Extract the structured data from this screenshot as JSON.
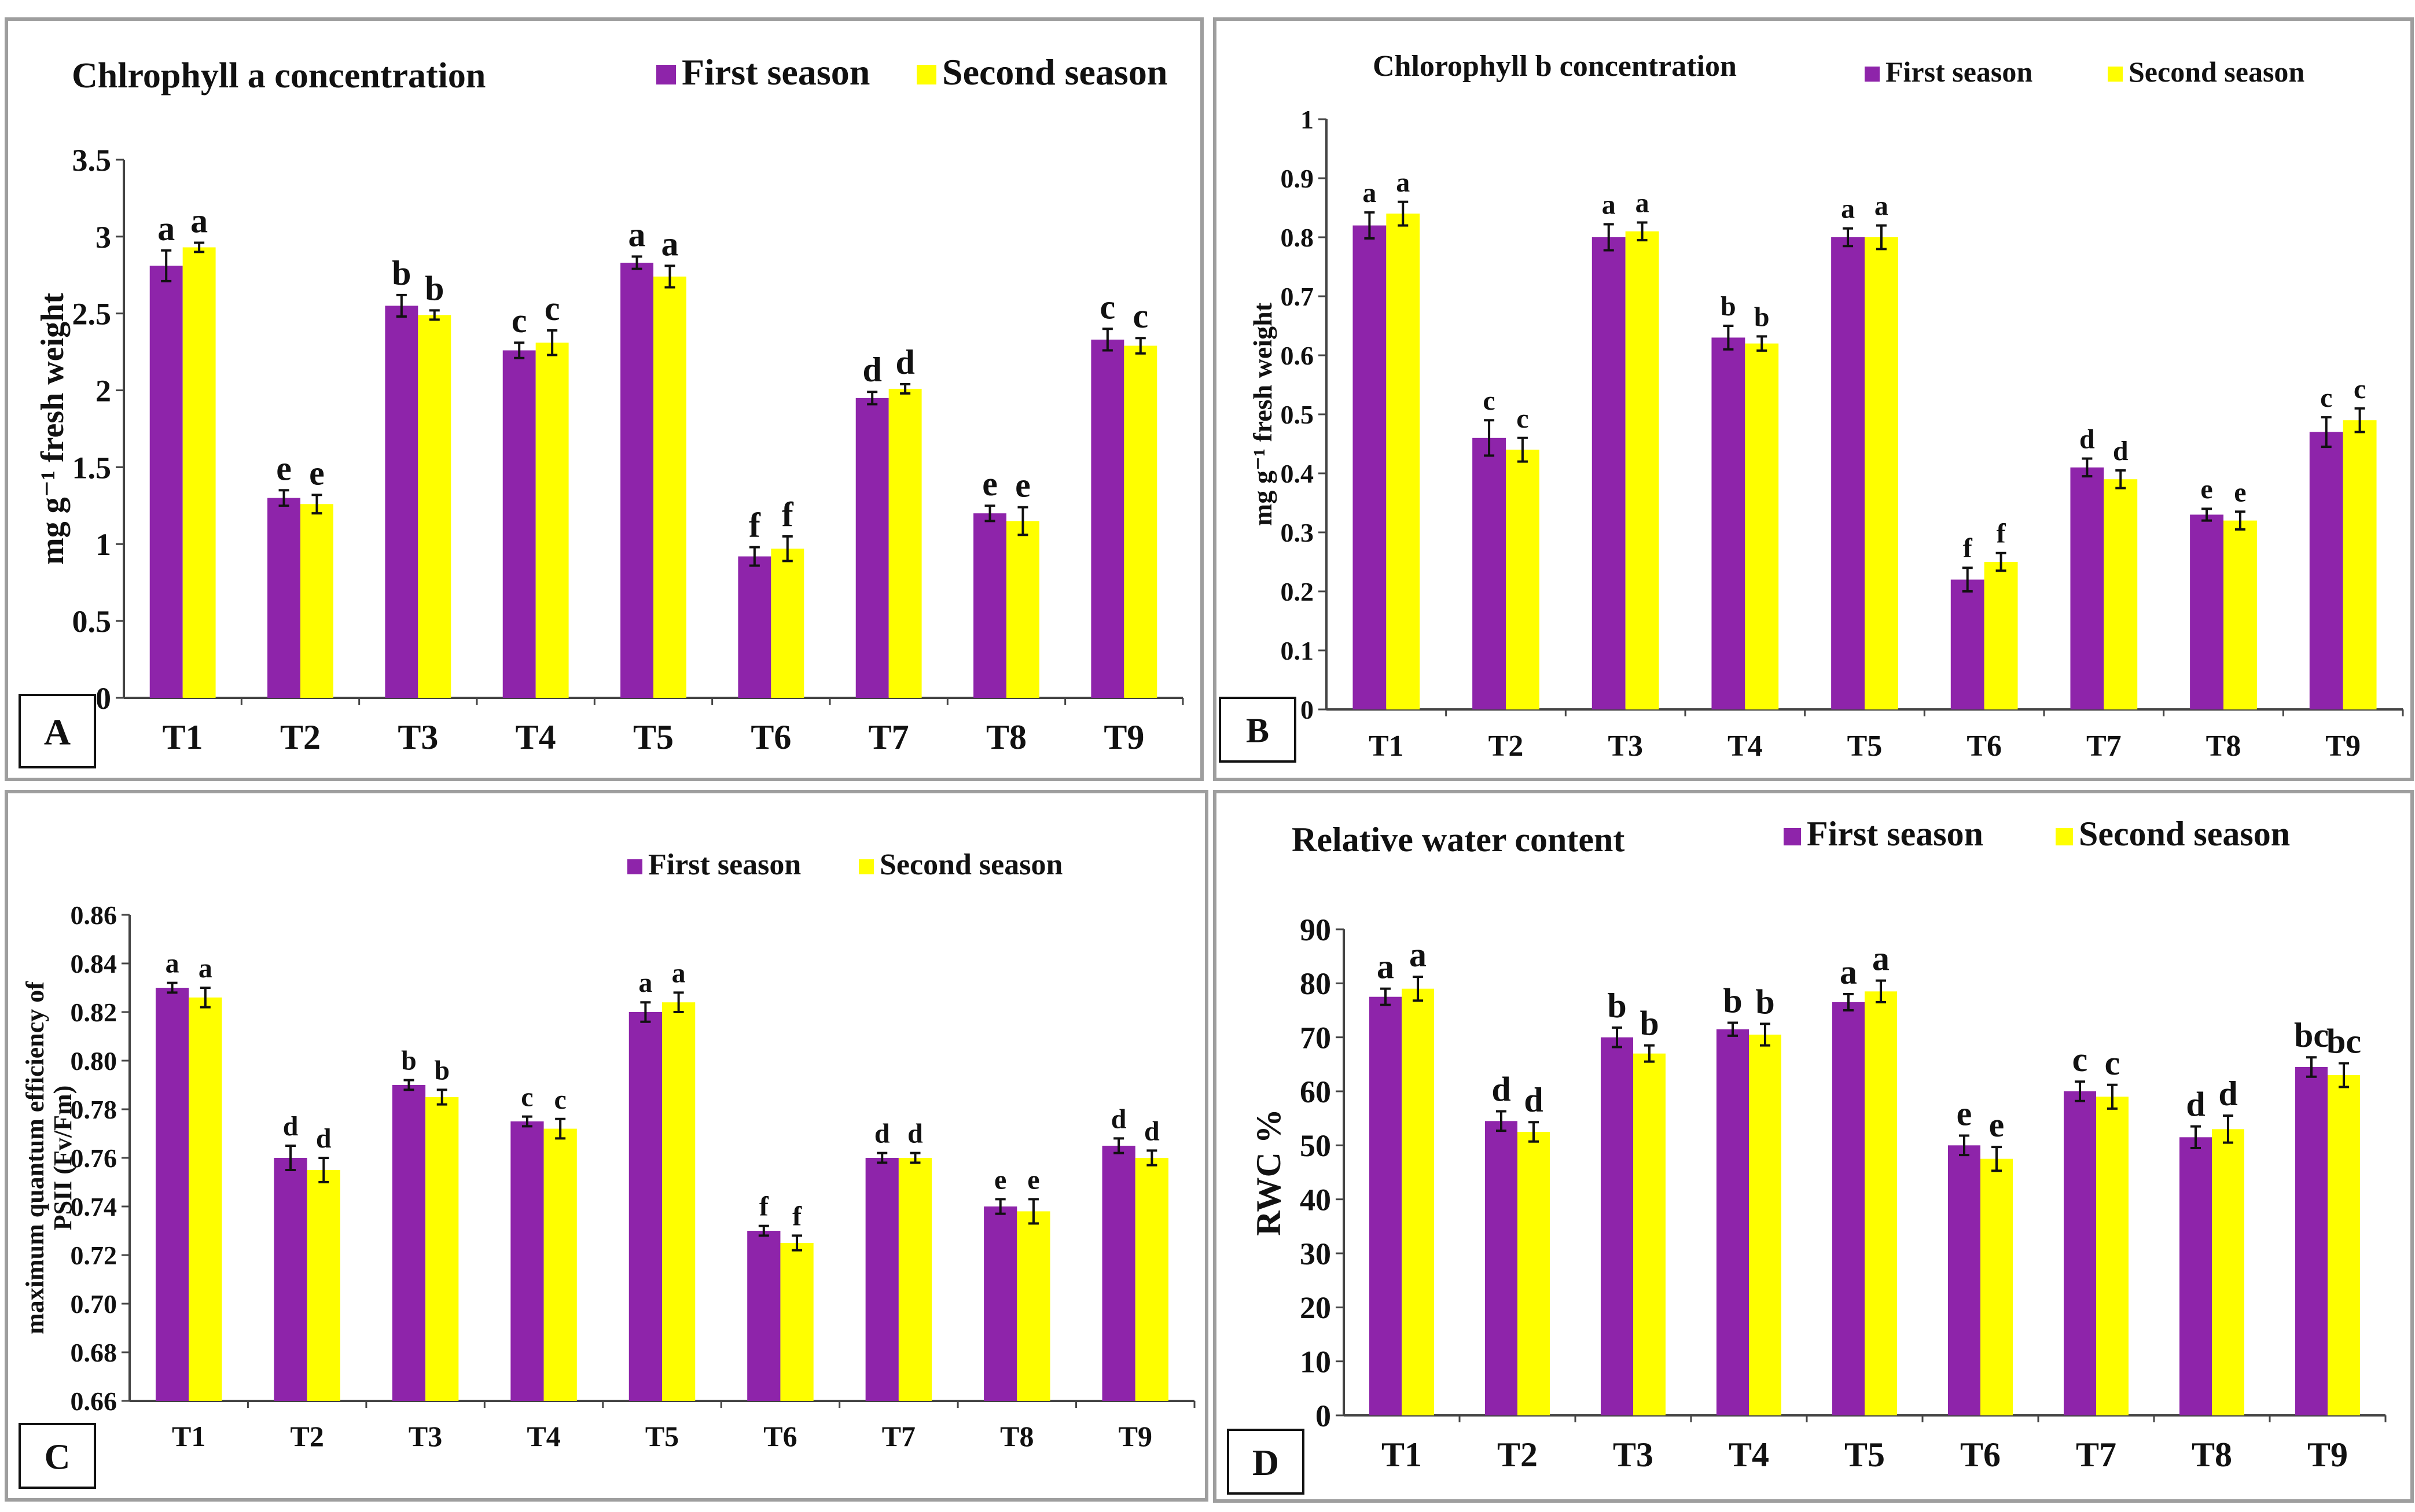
{
  "figure": {
    "colors": {
      "first": "#8e24aa",
      "second": "#ffff00",
      "axis": "#444444",
      "errorbar": "#111111"
    }
  },
  "chart_data": [
    {
      "id": "A",
      "type": "bar",
      "panel_label": "A",
      "title": "Chlrophyll  a concentration",
      "ylabel": "mg g⁻¹   fresh weight",
      "xlabel": "",
      "categories": [
        "T1",
        "T2",
        "T3",
        "T4",
        "T5",
        "T6",
        "T7",
        "T8",
        "T9"
      ],
      "ylim": [
        0,
        3.5
      ],
      "yticks": [
        0,
        0.5,
        1,
        1.5,
        2,
        2.5,
        3,
        3.5
      ],
      "ytick_labels": [
        "0",
        "0.5",
        "1",
        "1.5",
        "2",
        "2.5",
        "3",
        "3.5"
      ],
      "legend": "top-right",
      "grid": false,
      "series": [
        {
          "name": "First season",
          "values": [
            2.81,
            1.3,
            2.55,
            2.26,
            2.83,
            0.92,
            1.95,
            1.2,
            2.33
          ],
          "errors": [
            0.1,
            0.05,
            0.07,
            0.05,
            0.04,
            0.06,
            0.04,
            0.05,
            0.07
          ],
          "letters": [
            "a",
            "e",
            "b",
            "c",
            "a",
            "f",
            "d",
            "e",
            "c"
          ]
        },
        {
          "name": "Second season",
          "values": [
            2.93,
            1.26,
            2.49,
            2.31,
            2.74,
            0.97,
            2.01,
            1.15,
            2.29
          ],
          "errors": [
            0.03,
            0.06,
            0.03,
            0.08,
            0.07,
            0.08,
            0.03,
            0.09,
            0.05
          ],
          "letters": [
            "a",
            "e",
            "b",
            "c",
            "a",
            "f",
            "d",
            "e",
            "c"
          ]
        }
      ]
    },
    {
      "id": "B",
      "type": "bar",
      "panel_label": "B",
      "title": "Chlorophyll b concentration",
      "ylabel": "mg g⁻¹   fresh weight",
      "xlabel": "",
      "categories": [
        "T1",
        "T2",
        "T3",
        "T4",
        "T5",
        "T6",
        "T7",
        "T8",
        "T9"
      ],
      "ylim": [
        0,
        1
      ],
      "yticks": [
        0,
        0.1,
        0.2,
        0.3,
        0.4,
        0.5,
        0.6,
        0.7,
        0.8,
        0.9,
        1
      ],
      "ytick_labels": [
        "0",
        "0.1",
        "0.2",
        "0.3",
        "0.4",
        "0.5",
        "0.6",
        "0.7",
        "0.8",
        "0.9",
        "1"
      ],
      "legend": "top-right",
      "grid": false,
      "series": [
        {
          "name": "First season",
          "values": [
            0.82,
            0.46,
            0.8,
            0.63,
            0.8,
            0.22,
            0.41,
            0.33,
            0.47
          ],
          "errors": [
            0.022,
            0.03,
            0.022,
            0.02,
            0.015,
            0.02,
            0.015,
            0.01,
            0.025
          ],
          "letters": [
            "a",
            "c",
            "a",
            "b",
            "a",
            "f",
            "d",
            "e",
            "c"
          ]
        },
        {
          "name": "Second season",
          "values": [
            0.84,
            0.44,
            0.81,
            0.62,
            0.8,
            0.25,
            0.39,
            0.32,
            0.49
          ],
          "errors": [
            0.02,
            0.02,
            0.015,
            0.012,
            0.02,
            0.015,
            0.015,
            0.015,
            0.02
          ],
          "letters": [
            "a",
            "c",
            "a",
            "b",
            "a",
            "f",
            "d",
            "e",
            "c"
          ]
        }
      ]
    },
    {
      "id": "C",
      "type": "bar",
      "panel_label": "C",
      "title": "",
      "ylabel": "maximum  quantum efficiency of\nPSII (Fv/Fm)",
      "xlabel": "",
      "categories": [
        "T1",
        "T2",
        "T3",
        "T4",
        "T5",
        "T6",
        "T7",
        "T8",
        "T9"
      ],
      "ylim": [
        0.66,
        0.86
      ],
      "yticks": [
        0.66,
        0.68,
        0.7,
        0.72,
        0.74,
        0.76,
        0.78,
        0.8,
        0.82,
        0.84,
        0.86
      ],
      "ytick_labels": [
        "0.66",
        "0.68",
        "0.70",
        "0.72",
        "0.74",
        "0.76",
        "0.78",
        "0.80",
        "0.82",
        "0.84",
        "0.86"
      ],
      "legend": "top-right",
      "grid": false,
      "series": [
        {
          "name": "First season",
          "values": [
            0.83,
            0.76,
            0.79,
            0.775,
            0.82,
            0.73,
            0.76,
            0.74,
            0.765
          ],
          "errors": [
            0.002,
            0.005,
            0.002,
            0.002,
            0.004,
            0.002,
            0.002,
            0.003,
            0.003
          ],
          "letters": [
            "a",
            "d",
            "b",
            "c",
            "a",
            "f",
            "d",
            "e",
            "d"
          ]
        },
        {
          "name": "Second season",
          "values": [
            0.826,
            0.755,
            0.785,
            0.772,
            0.824,
            0.725,
            0.76,
            0.738,
            0.76
          ],
          "errors": [
            0.004,
            0.005,
            0.003,
            0.004,
            0.004,
            0.003,
            0.002,
            0.005,
            0.003
          ],
          "letters": [
            "a",
            "d",
            "b",
            "c",
            "a",
            "f",
            "d",
            "e",
            "d"
          ]
        }
      ]
    },
    {
      "id": "D",
      "type": "bar",
      "panel_label": "D",
      "title": "Relative water content",
      "ylabel": "RWC %",
      "xlabel": "",
      "categories": [
        "T1",
        "T2",
        "T3",
        "T4",
        "T5",
        "T6",
        "T7",
        "T8",
        "T9"
      ],
      "ylim": [
        0,
        90
      ],
      "yticks": [
        0,
        10,
        20,
        30,
        40,
        50,
        60,
        70,
        80,
        90
      ],
      "ytick_labels": [
        "0",
        "10",
        "20",
        "30",
        "40",
        "50",
        "60",
        "70",
        "80",
        "90"
      ],
      "legend": "top-right",
      "grid": false,
      "series": [
        {
          "name": "First season",
          "values": [
            77.5,
            54.5,
            70.0,
            71.5,
            76.5,
            50.0,
            60.0,
            51.5,
            64.5
          ],
          "errors": [
            1.5,
            1.8,
            1.8,
            1.2,
            1.5,
            1.8,
            1.8,
            2.0,
            1.8
          ],
          "letters": [
            "a",
            "d",
            "b",
            "b",
            "a",
            "e",
            "c",
            "d",
            "bc"
          ]
        },
        {
          "name": "Second season",
          "values": [
            79.0,
            52.5,
            67.0,
            70.5,
            78.5,
            47.5,
            59.0,
            53.0,
            63.0
          ],
          "errors": [
            2.2,
            1.8,
            1.5,
            2.0,
            2.0,
            2.2,
            2.2,
            2.5,
            2.2
          ],
          "letters": [
            "a",
            "d",
            "b",
            "b",
            "a",
            "e",
            "c",
            "d",
            "bc"
          ]
        }
      ]
    }
  ]
}
